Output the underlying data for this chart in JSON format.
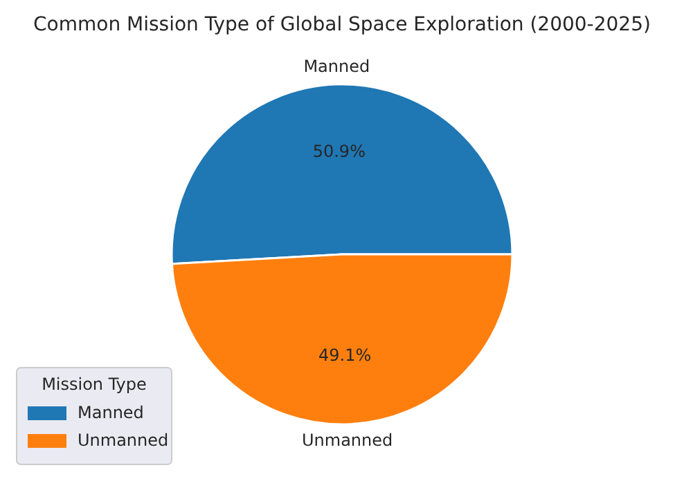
{
  "chart_data": {
    "type": "pie",
    "title": "Common Mission Type of Global Space Exploration (2000-2025)",
    "categories": [
      "Manned",
      "Unmanned"
    ],
    "values": [
      50.9,
      49.1
    ],
    "colors": [
      "#1f77b4",
      "#ff7f0e"
    ],
    "value_labels": [
      "50.9%",
      "49.1%"
    ],
    "legend_title": "Mission Type",
    "legend": "bottom left"
  }
}
